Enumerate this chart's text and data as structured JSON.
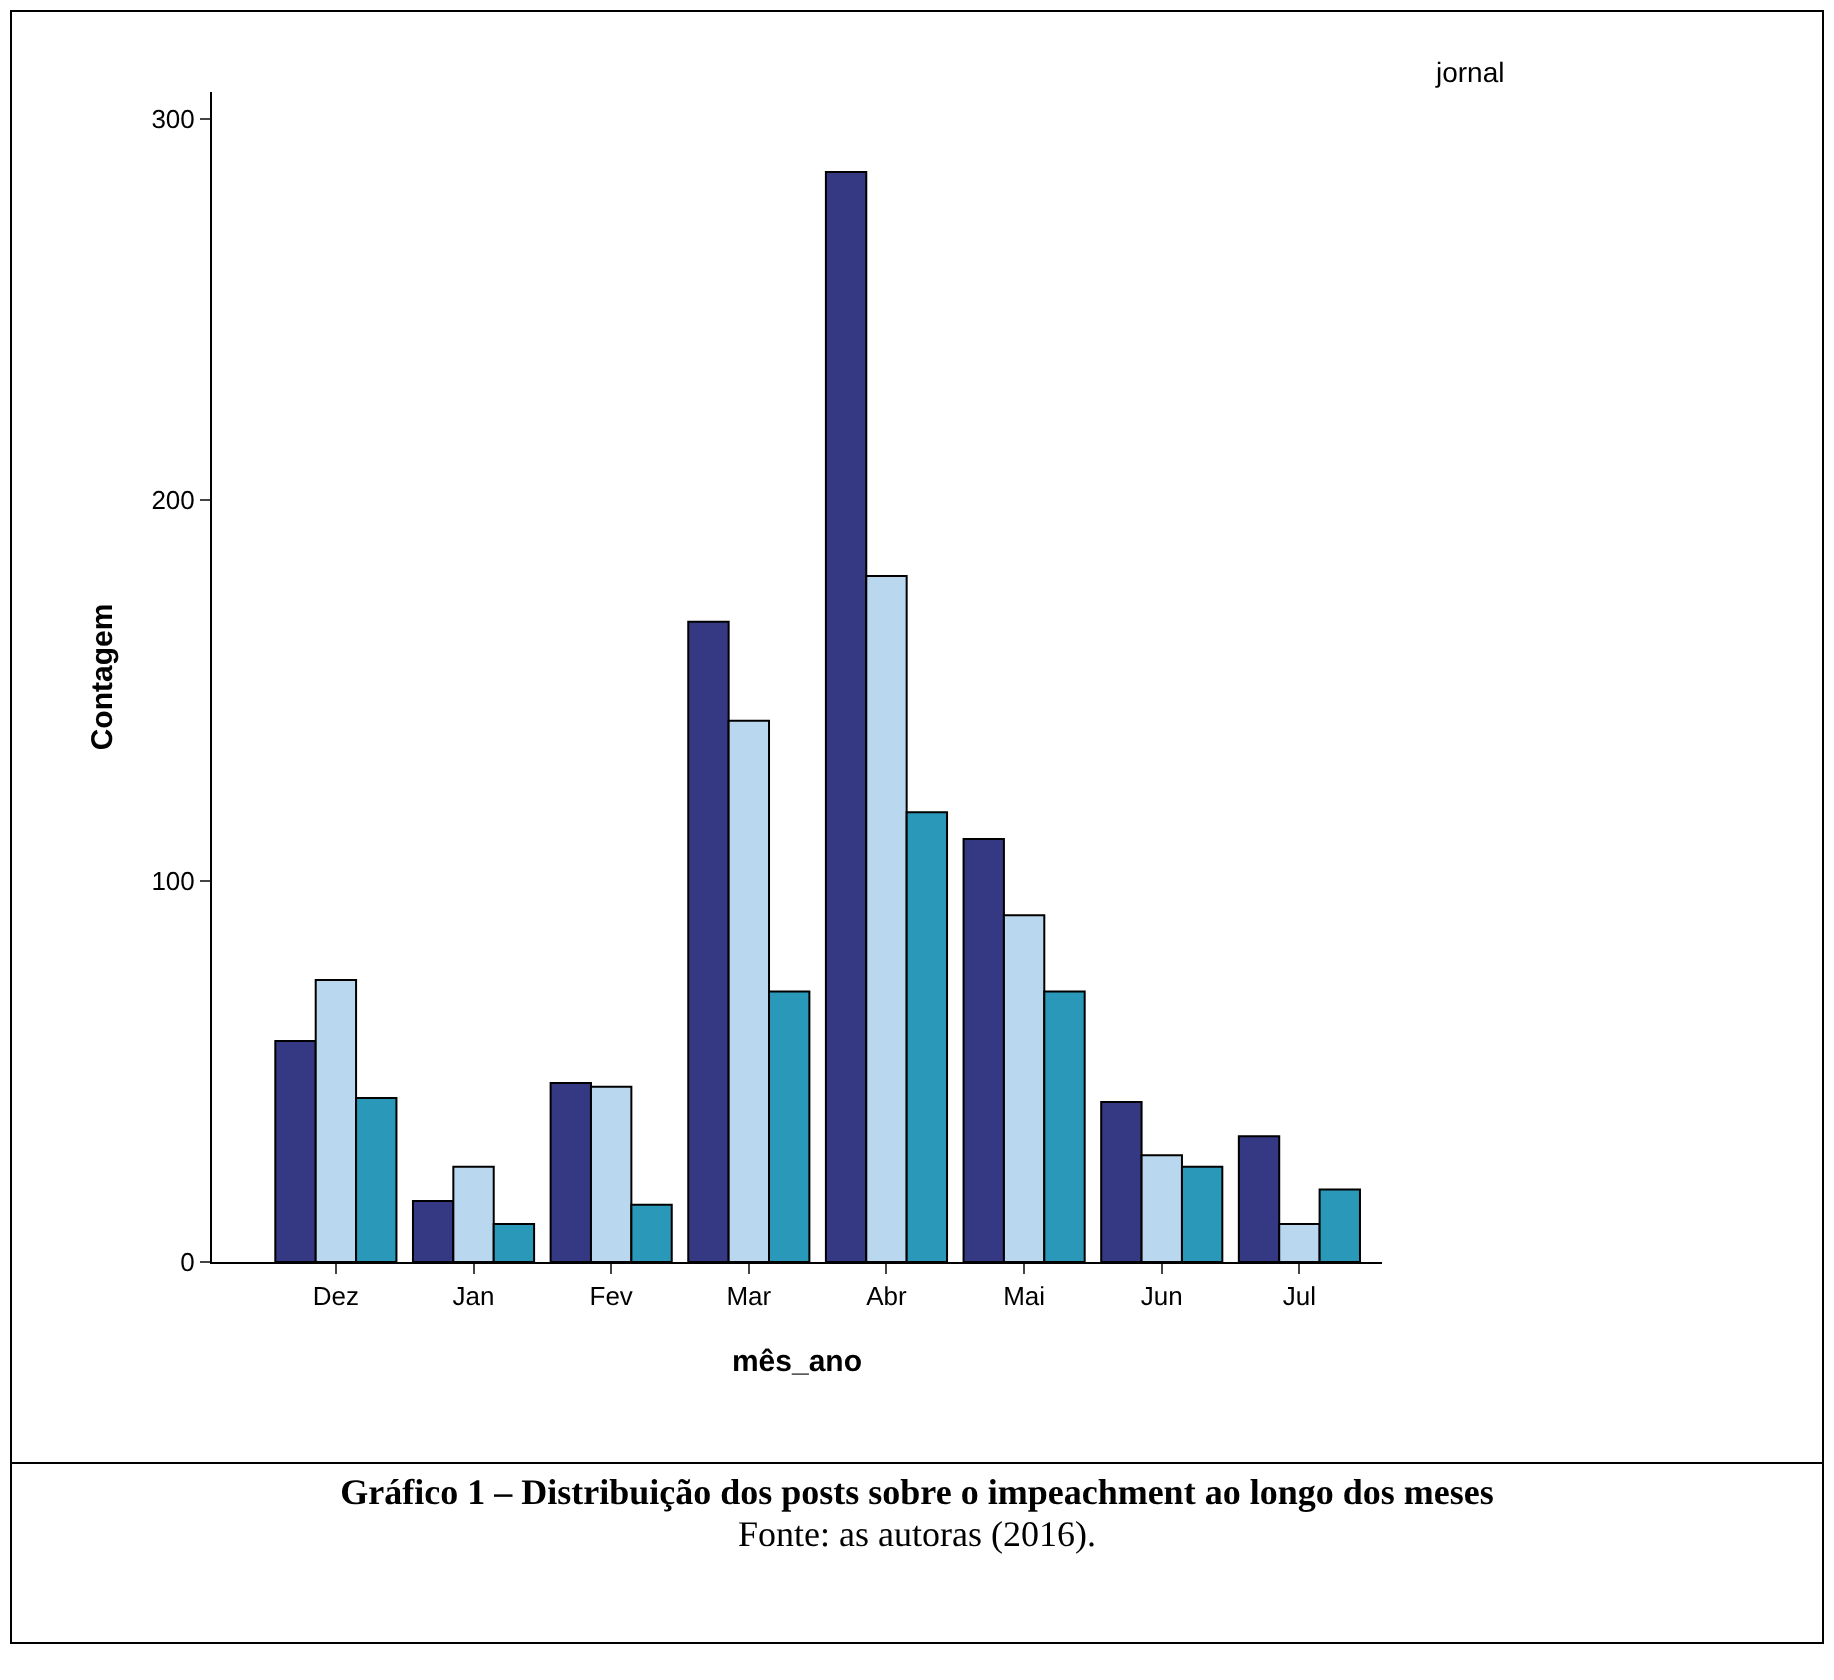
{
  "chart_data": {
    "type": "bar",
    "title": "Gráfico 1 – Distribuição dos posts sobre o impeachment ao longo dos meses",
    "xlabel": "mês_ano",
    "ylabel": "Contagem",
    "legend_title": "jornal",
    "annotations": [
      "Fonte: as autoras (2016)."
    ],
    "categories": [
      "Dez",
      "Jan",
      "Fev",
      "Mar",
      "Abr",
      "Mai",
      "Jun",
      "Jul"
    ],
    "series": [
      {
        "color": "#353883",
        "values": [
          58,
          16,
          47,
          168,
          286,
          111,
          42,
          33
        ]
      },
      {
        "color": "#b9d7ee",
        "values": [
          74,
          25,
          46,
          142,
          180,
          91,
          28,
          10
        ]
      },
      {
        "color": "#2a98b8",
        "values": [
          43,
          10,
          15,
          71,
          118,
          71,
          25,
          19
        ]
      }
    ],
    "ylim": [
      0,
      307
    ],
    "yticks": [
      0,
      100,
      200,
      300
    ],
    "grid": false
  }
}
